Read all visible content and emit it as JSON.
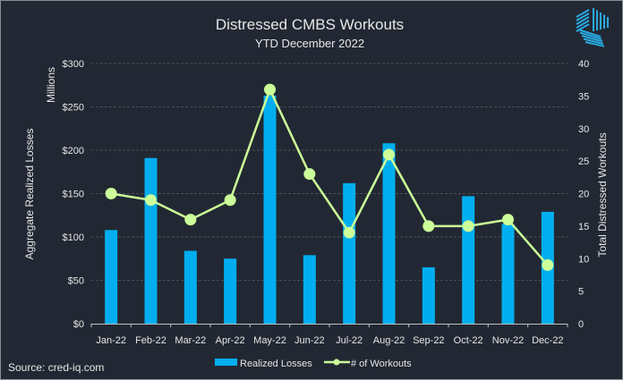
{
  "chart_data": {
    "type": "bar+line",
    "title": "Distressed CMBS Workouts",
    "subtitle": "YTD December 2022",
    "categories": [
      "Jan-22",
      "Feb-22",
      "Mar-22",
      "Apr-22",
      "May-22",
      "Jun-22",
      "Jul-22",
      "Aug-22",
      "Sep-22",
      "Oct-22",
      "Nov-22",
      "Dec-22"
    ],
    "series": [
      {
        "name": "Realized Losses",
        "type": "bar",
        "axis": "left",
        "color": "#00aeef",
        "values": [
          108,
          191,
          84,
          75,
          263,
          79,
          162,
          208,
          65,
          147,
          115,
          129
        ]
      },
      {
        "name": "# of Workouts",
        "type": "line",
        "axis": "right",
        "color": "#ccff99",
        "values": [
          20,
          19,
          16,
          19,
          36,
          23,
          14,
          26,
          15,
          15,
          16,
          9
        ]
      }
    ],
    "ylabel": "Aggregate Realized Losses",
    "yunit_label": "Millions",
    "ylim": [
      0,
      300
    ],
    "yticks": [
      "$0",
      "$50",
      "$100",
      "$150",
      "$200",
      "$250",
      "$300"
    ],
    "y2label": "Total Distressed Workouts",
    "y2lim": [
      0,
      40
    ],
    "y2ticks": [
      "0",
      "5",
      "10",
      "15",
      "20",
      "25",
      "30",
      "35",
      "40"
    ],
    "grid": true,
    "legend": "bottom"
  },
  "source": "Source: cred-iq.com",
  "colors": {
    "background": "#222833",
    "grid": "#4a505a",
    "axis": "#bfbfbf",
    "text": "#e6e6e6"
  }
}
